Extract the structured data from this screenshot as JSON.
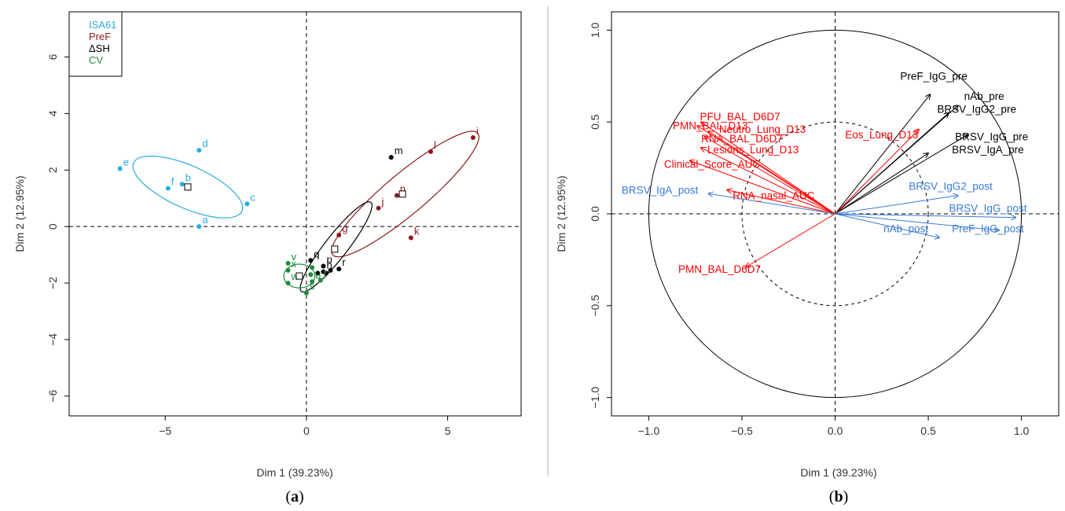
{
  "chart_data": [
    {
      "type": "scatter",
      "panel_label_open": "(",
      "panel_label": "a",
      "panel_label_close": ")",
      "xlabel": "Dim 1 (39.23%)",
      "ylabel": "Dim 2 (12.95%)",
      "xlim": [
        -8.4,
        7.6
      ],
      "ylim": [
        -6.7,
        7.6
      ],
      "xticks": [
        -5,
        0,
        5
      ],
      "yticks": [
        -6,
        -4,
        -2,
        0,
        2,
        4,
        6
      ],
      "reference_lines": "dashed lines at x = 0 and y = 0",
      "legend_position": "top-left",
      "legend": [
        {
          "label": "ISA61",
          "color": "#29abe2"
        },
        {
          "label": "PreF",
          "color": "#8b1a1a"
        },
        {
          "label": "ΔSH",
          "color": "#000000"
        },
        {
          "label": "CV",
          "color": "#1e8c3a"
        }
      ],
      "series": [
        {
          "name": "ISA61",
          "color": "#29abe2",
          "points": [
            {
              "label": "e",
              "x": -6.6,
              "y": 2.05
            },
            {
              "label": "d",
              "x": -3.8,
              "y": 2.7
            },
            {
              "label": "b",
              "x": -4.4,
              "y": 1.5
            },
            {
              "label": "f",
              "x": -4.9,
              "y": 1.35
            },
            {
              "label": "c",
              "x": -2.1,
              "y": 0.8
            },
            {
              "label": "a",
              "x": -3.8,
              "y": 0.0
            }
          ],
          "centroid": {
            "x": -4.2,
            "y": 1.4
          },
          "ellipse": {
            "cx": -4.2,
            "cy": 1.4,
            "rx": 2.1,
            "ry": 0.75,
            "angle_deg": -24
          }
        },
        {
          "name": "PreF",
          "color": "#8b1a1a",
          "points": [
            {
              "label": "i",
              "x": 5.9,
              "y": 3.15
            },
            {
              "label": "l",
              "x": 4.4,
              "y": 2.65
            },
            {
              "label": "n",
              "x": 3.2,
              "y": 1.1
            },
            {
              "label": "j",
              "x": 2.55,
              "y": 0.65
            },
            {
              "label": "g",
              "x": 1.15,
              "y": -0.3
            },
            {
              "label": "k",
              "x": 3.7,
              "y": -0.4
            }
          ],
          "centroid": {
            "x": 3.4,
            "y": 1.15
          },
          "ellipse": {
            "cx": 3.5,
            "cy": 1.15,
            "rx": 3.35,
            "ry": 0.72,
            "angle_deg": 40
          }
        },
        {
          "name": "ΔSH",
          "color": "#000000",
          "points": [
            {
              "label": "m",
              "x": 3.0,
              "y": 2.45
            },
            {
              "label": "q",
              "x": 0.15,
              "y": -1.2
            },
            {
              "label": "p",
              "x": 0.6,
              "y": -1.4
            },
            {
              "label": "h",
              "x": 0.6,
              "y": -1.6
            },
            {
              "label": "r",
              "x": 1.15,
              "y": -1.5
            },
            {
              "label": "",
              "x": 0.4,
              "y": -1.65
            },
            {
              "label": "",
              "x": 0.7,
              "y": -1.65
            },
            {
              "label": "",
              "x": 0.85,
              "y": -1.55
            }
          ],
          "centroid": {
            "x": 1.0,
            "y": -0.8
          },
          "ellipse": {
            "cx": 1.05,
            "cy": -0.72,
            "rx": 2.0,
            "ry": 0.4,
            "angle_deg": 52
          }
        },
        {
          "name": "CV",
          "color": "#1e8c3a",
          "points": [
            {
              "label": "v",
              "x": -0.65,
              "y": -1.3
            },
            {
              "label": "x",
              "x": -0.65,
              "y": -1.55
            },
            {
              "label": "w",
              "x": -0.65,
              "y": -2.0
            },
            {
              "label": "s",
              "x": 0.0,
              "y": -2.35
            },
            {
              "label": "u",
              "x": 0.2,
              "y": -1.95
            },
            {
              "label": "t",
              "x": 0.5,
              "y": -1.9
            },
            {
              "label": "",
              "x": 0.2,
              "y": -1.45
            },
            {
              "label": "",
              "x": 0.15,
              "y": -1.7
            }
          ],
          "centroid": {
            "x": -0.25,
            "y": -1.75
          },
          "ellipse": {
            "cx": -0.25,
            "cy": -1.75,
            "rx": 0.55,
            "ry": 0.42,
            "angle_deg": 0
          }
        }
      ]
    },
    {
      "type": "line",
      "panel_label_open": "(",
      "panel_label": "b",
      "panel_label_close": ")",
      "xlabel": "Dim 1 (39.23%)",
      "ylabel": "Dim 2 (12.95%)",
      "xlim": [
        -1.2,
        1.2
      ],
      "ylim": [
        -1.1,
        1.1
      ],
      "xticks": [
        -1.0,
        -0.5,
        0.0,
        0.5,
        1.0
      ],
      "xtick_labels": [
        "−1.0",
        "−0.5",
        "0.0",
        "0.5",
        "1.0"
      ],
      "yticks": [
        -1.0,
        -0.5,
        0.0,
        0.5,
        1.0
      ],
      "ytick_labels": [
        "−1.0",
        "−0.5",
        "0.0",
        "0.5",
        "1.0"
      ],
      "circles": [
        {
          "radius": 1.0,
          "style": "solid"
        },
        {
          "radius": 0.5,
          "style": "dashed"
        }
      ],
      "reference_lines": "dashed lines at x = 0 and y = 0",
      "vector_groups": [
        {
          "color": "#000000",
          "vectors": [
            {
              "label": "PreF_IgG_pre",
              "x": 0.51,
              "y": 0.65,
              "lx": 0.53,
              "ly": 0.73
            },
            {
              "label": "nAb_pre",
              "x": 0.66,
              "y": 0.59,
              "lx": 0.8,
              "ly": 0.62
            },
            {
              "label": "BRSV_IgG2_pre",
              "x": 0.61,
              "y": 0.55,
              "lx": 0.76,
              "ly": 0.55
            },
            {
              "label": "BRSV_IgG_pre",
              "x": 0.71,
              "y": 0.43,
              "lx": 0.84,
              "ly": 0.4
            },
            {
              "label": "BRSV_IgA_pre",
              "x": 0.5,
              "y": 0.33,
              "lx": 0.82,
              "ly": 0.33
            }
          ]
        },
        {
          "color": "#ff0000",
          "vectors": [
            {
              "label": "PFU_BAL_D6D7",
              "x": -0.72,
              "y": 0.5,
              "lx": -0.51,
              "ly": 0.51
            },
            {
              "label": "PMN_BAL_D13",
              "x": -0.74,
              "y": 0.48,
              "lx": -0.67,
              "ly": 0.46
            },
            {
              "label": "Neutro_Lung_D13",
              "x": -0.68,
              "y": 0.45,
              "lx": -0.39,
              "ly": 0.44
            },
            {
              "label": "RNA_BAL_D6D7",
              "x": -0.7,
              "y": 0.42,
              "lx": -0.5,
              "ly": 0.39
            },
            {
              "label": "Lesions_Lung_D13",
              "x": -0.72,
              "y": 0.36,
              "lx": -0.44,
              "ly": 0.33
            },
            {
              "label": "Clinical_Score_AUC",
              "x": -0.78,
              "y": 0.29,
              "lx": -0.66,
              "ly": 0.25
            },
            {
              "label": "RNA_nasal_AUC",
              "x": -0.58,
              "y": 0.13,
              "lx": -0.33,
              "ly": 0.08
            },
            {
              "label": "Eos_Lung_D13",
              "x": 0.45,
              "y": 0.46,
              "lx": 0.25,
              "ly": 0.41
            },
            {
              "label": "PMN_BAL_D6D7",
              "x": -0.48,
              "y": -0.29,
              "lx": -0.62,
              "ly": -0.32
            }
          ]
        },
        {
          "color": "#3a7bd5",
          "vectors": [
            {
              "label": "BRSV_IgA_post",
              "x": -0.68,
              "y": 0.11,
              "lx": -0.94,
              "ly": 0.11
            },
            {
              "label": "BRSV_IgG2_post",
              "x": 0.66,
              "y": 0.1,
              "lx": 0.62,
              "ly": 0.13
            },
            {
              "label": "BRSV_IgG_post",
              "x": 0.97,
              "y": -0.02,
              "lx": 0.82,
              "ly": 0.01
            },
            {
              "label": "nAb_post",
              "x": 0.56,
              "y": -0.13,
              "lx": 0.38,
              "ly": -0.1
            },
            {
              "label": "PreF_IgG_post",
              "x": 0.88,
              "y": -0.09,
              "lx": 0.82,
              "ly": -0.1
            }
          ]
        }
      ]
    }
  ]
}
